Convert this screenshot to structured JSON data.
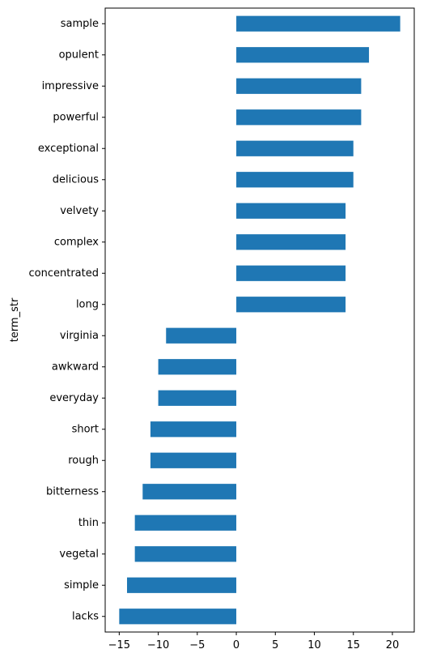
{
  "chart_data": {
    "type": "bar",
    "orientation": "horizontal",
    "categories": [
      "sample",
      "opulent",
      "impressive",
      "powerful",
      "exceptional",
      "delicious",
      "velvety",
      "complex",
      "concentrated",
      "long",
      "virginia",
      "awkward",
      "everyday",
      "short",
      "rough",
      "bitterness",
      "thin",
      "vegetal",
      "simple",
      "lacks"
    ],
    "values": [
      21,
      17,
      16,
      16,
      15,
      15,
      14,
      14,
      14,
      14,
      -9,
      -10,
      -10,
      -11,
      -11,
      -12,
      -13,
      -13,
      -14,
      -15
    ],
    "title": "",
    "xlabel": "",
    "ylabel": "term_str",
    "xlim": [
      -16.8,
      22.8
    ],
    "xticks": [
      -15,
      -10,
      -5,
      0,
      5,
      10,
      15,
      20
    ],
    "xtick_labels": [
      "−15",
      "−10",
      "−5",
      "0",
      "5",
      "10",
      "15",
      "20"
    ],
    "bar_color": "#1f77b4",
    "grid": false,
    "legend": false
  }
}
